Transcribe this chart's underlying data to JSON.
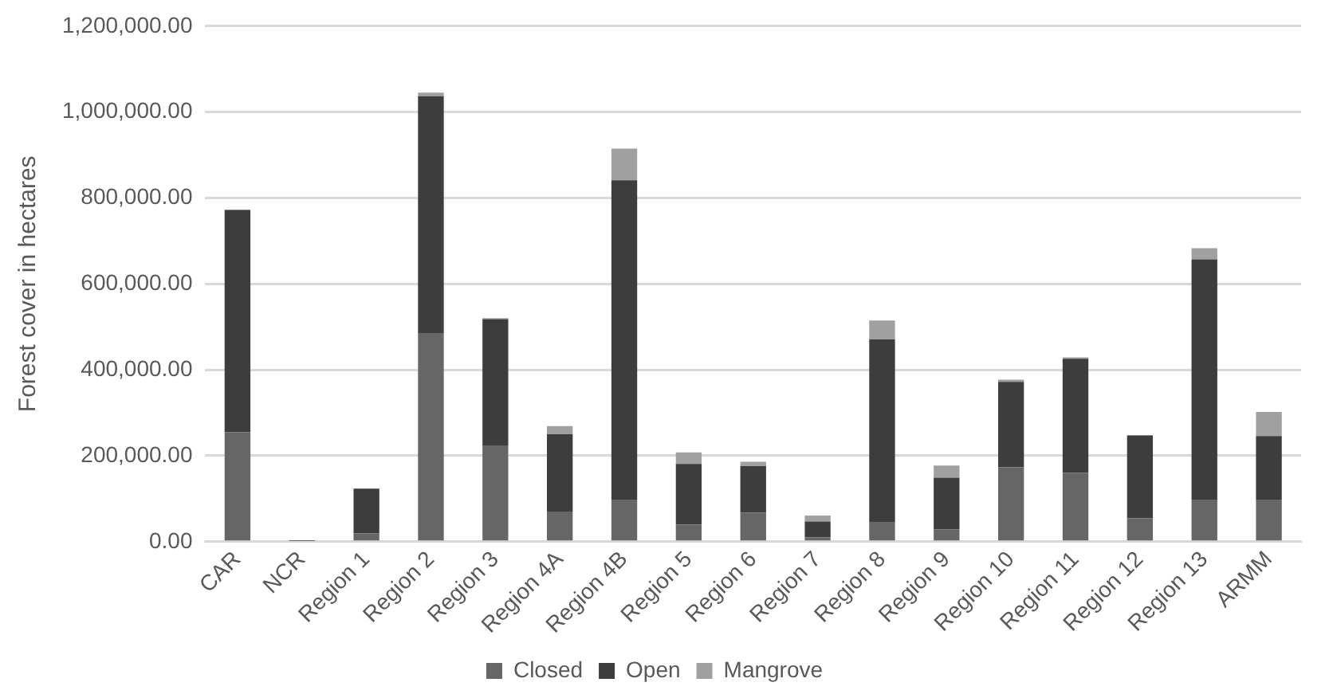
{
  "chart_data": {
    "type": "bar",
    "stacked": true,
    "ylabel": "Forest cover in hectares",
    "categories": [
      "CAR",
      "NCR",
      "Region 1",
      "Region 2",
      "Region 3",
      "Region 4A",
      "Region 4B",
      "Region 5",
      "Region 6",
      "Region 7",
      "Region 8",
      "Region 9",
      "Region 10",
      "Region 11",
      "Region 12",
      "Region 13",
      "ARMM"
    ],
    "series": [
      {
        "name": "Closed",
        "color": "#666666",
        "values": [
          255000,
          0,
          19000,
          484000,
          224000,
          70000,
          98000,
          39500,
          67500,
          10000,
          44600,
          29000,
          173000,
          160500,
          55000,
          98000,
          98000
        ]
      },
      {
        "name": "Open",
        "color": "#3d3d3d",
        "values": [
          517000,
          1500,
          104600,
          553000,
          294000,
          180000,
          743000,
          141500,
          108500,
          37000,
          426000,
          120000,
          199000,
          265000,
          192000,
          559000,
          148000
        ]
      },
      {
        "name": "Mangrove",
        "color": "#a0a0a0",
        "values": [
          1000,
          0,
          0,
          8000,
          2500,
          19000,
          74000,
          26700,
          10000,
          14000,
          44000,
          28000,
          5000,
          3500,
          1000,
          26000,
          56000
        ]
      }
    ],
    "ylim": [
      0,
      1200000
    ],
    "yticks": [
      {
        "value": 0,
        "label": "0.00"
      },
      {
        "value": 200000,
        "label": "200,000.00"
      },
      {
        "value": 400000,
        "label": "400,000.00"
      },
      {
        "value": 600000,
        "label": "600,000.00"
      },
      {
        "value": 800000,
        "label": "800,000.00"
      },
      {
        "value": 1000000,
        "label": "1,000,000.00"
      },
      {
        "value": 1200000,
        "label": "1,200,000.00"
      }
    ],
    "grid": "y",
    "legend": "bottom"
  }
}
